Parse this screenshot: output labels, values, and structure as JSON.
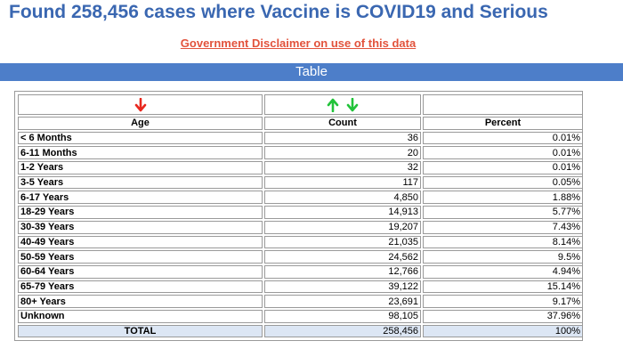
{
  "header": {
    "title": "Found 258,456 cases where Vaccine is COVID19 and Serious"
  },
  "disclaimer": {
    "link_text": "Government Disclaimer on use of this data"
  },
  "section": {
    "title": "Table"
  },
  "table": {
    "columns": {
      "age": "Age",
      "count": "Count",
      "percent": "Percent"
    },
    "sort_icons": {
      "age": "sort-arrow-down-red-icon",
      "count_up": "sort-arrow-up-green-icon",
      "count_down": "sort-arrow-down-green-icon"
    },
    "colors": {
      "sort_down_red": "#e8281e",
      "sort_green": "#22c33a",
      "total_row_bg": "#dce6f4"
    },
    "rows": [
      {
        "age": "< 6 Months",
        "count": "36",
        "percent": "0.01%"
      },
      {
        "age": "6-11 Months",
        "count": "20",
        "percent": "0.01%"
      },
      {
        "age": "1-2 Years",
        "count": "32",
        "percent": "0.01%"
      },
      {
        "age": "3-5 Years",
        "count": "117",
        "percent": "0.05%"
      },
      {
        "age": "6-17 Years",
        "count": "4,850",
        "percent": "1.88%"
      },
      {
        "age": "18-29 Years",
        "count": "14,913",
        "percent": "5.77%"
      },
      {
        "age": "30-39 Years",
        "count": "19,207",
        "percent": "7.43%"
      },
      {
        "age": "40-49 Years",
        "count": "21,035",
        "percent": "8.14%"
      },
      {
        "age": "50-59 Years",
        "count": "24,562",
        "percent": "9.5%"
      },
      {
        "age": "60-64 Years",
        "count": "12,766",
        "percent": "4.94%"
      },
      {
        "age": "65-79 Years",
        "count": "39,122",
        "percent": "15.14%"
      },
      {
        "age": "80+ Years",
        "count": "23,691",
        "percent": "9.17%"
      },
      {
        "age": "Unknown",
        "count": "98,105",
        "percent": "37.96%"
      }
    ],
    "total": {
      "label": "TOTAL",
      "count": "258,456",
      "percent": "100%"
    }
  }
}
